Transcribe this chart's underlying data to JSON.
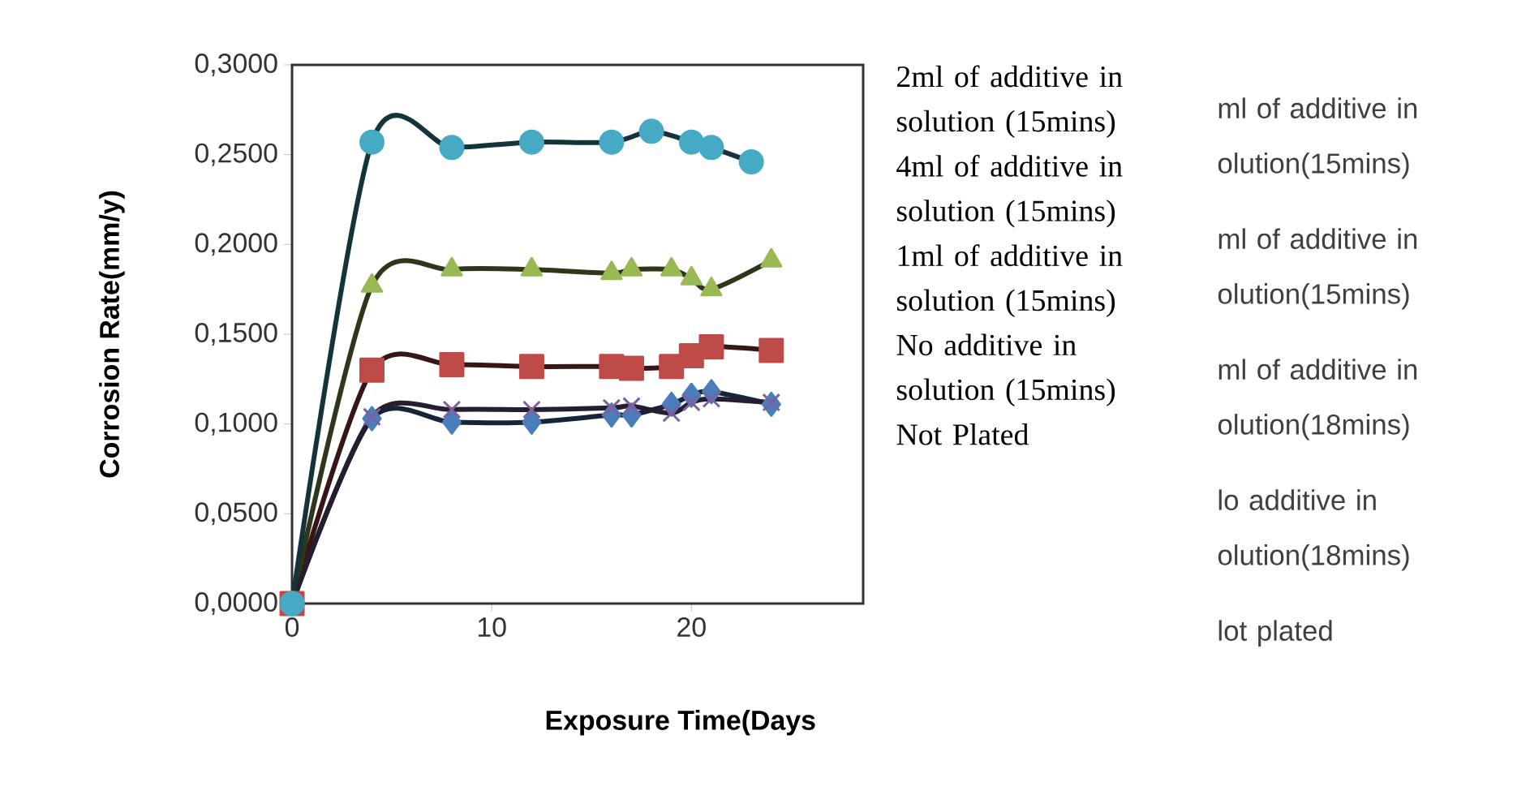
{
  "chart_data": {
    "type": "line",
    "xlabel": "Exposure Time(Days",
    "ylabel": "Corrosion Rate(mm/y)",
    "xlim": [
      0,
      28.6
    ],
    "xticks": [
      0,
      10,
      20
    ],
    "ylim": [
      0,
      0.3
    ],
    "yticks": [
      {
        "value": 0,
        "label": "0,0000"
      },
      {
        "value": 0.05,
        "label": "0,0500"
      },
      {
        "value": 0.1,
        "label": "0,1000"
      },
      {
        "value": 0.15,
        "label": "0,1500"
      },
      {
        "value": 0.2,
        "label": "0,2000"
      },
      {
        "value": 0.25,
        "label": "0,2500"
      },
      {
        "value": 0.3,
        "label": "0,3000"
      }
    ],
    "line_style": "solid",
    "series": [
      {
        "color": "#4a7ebb",
        "marker": "diamond",
        "x": [
          0,
          4,
          8,
          12,
          16,
          17,
          19,
          20,
          21,
          24
        ],
        "values": [
          0,
          0.103,
          0.101,
          0.101,
          0.105,
          0.105,
          0.111,
          0.116,
          0.118,
          0.111
        ]
      },
      {
        "color": "#be4b48",
        "marker": "square",
        "x": [
          0,
          4,
          8,
          12,
          16,
          17,
          19,
          20,
          21,
          24
        ],
        "values": [
          0,
          0.13,
          0.133,
          0.132,
          0.132,
          0.131,
          0.132,
          0.138,
          0.143,
          0.141
        ]
      },
      {
        "color": "#98b954",
        "marker": "triangle",
        "x": [
          0,
          4,
          8,
          12,
          16,
          17,
          19,
          20,
          21,
          24
        ],
        "values": [
          0,
          0.177,
          0.186,
          0.186,
          0.184,
          0.186,
          0.186,
          0.181,
          0.175,
          0.191
        ]
      },
      {
        "color": "#7d60a0",
        "marker": "cross",
        "x": [
          0,
          4,
          8,
          12,
          16,
          17,
          19,
          20,
          21,
          24
        ],
        "values": [
          0,
          0.104,
          0.108,
          0.108,
          0.109,
          0.11,
          0.106,
          0.112,
          0.114,
          0.112
        ]
      },
      {
        "color": "#46aac5",
        "marker": "circle",
        "x": [
          0,
          4,
          8,
          12,
          16,
          18,
          20,
          21,
          23
        ],
        "values": [
          0,
          0.257,
          0.254,
          0.257,
          0.257,
          0.263,
          0.257,
          0.254,
          0.246
        ]
      }
    ],
    "annotations": [
      "2ml of additive in solution (15mins)",
      "4ml of additive in solution (15mins)",
      "1ml of additive in solution (15mins)",
      "No additive in solution (15mins)",
      "Not Plated",
      "ml of additive in olution(15mins)",
      "ml of additive in olution(15mins)",
      "ml of additive in olution(18mins)",
      "lo additive in olution(18mins)",
      "lot plated"
    ]
  }
}
